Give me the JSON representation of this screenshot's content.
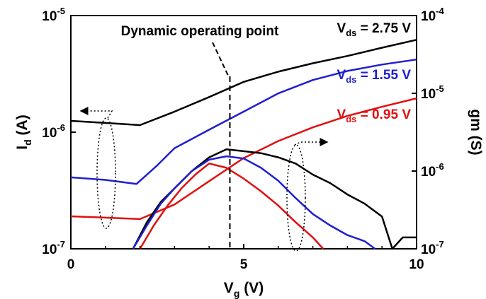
{
  "chart_data": {
    "type": "line",
    "x_axis": {
      "label": "V",
      "label_sub": "g",
      "label_unit": " (V)",
      "range": [
        0,
        10
      ],
      "ticks": [
        "0",
        "5",
        "10"
      ]
    },
    "y_left": {
      "label": "I",
      "label_sub": "d",
      "label_unit": " (A)",
      "scale": "log",
      "range": [
        1e-07,
        1e-05
      ],
      "ticks": [
        {
          "base": "10",
          "exp": "-5"
        },
        {
          "base": "10",
          "exp": "-6"
        },
        {
          "base": "10",
          "exp": "-7"
        }
      ]
    },
    "y_right": {
      "label": "gm (S)",
      "scale": "log",
      "range": [
        1e-07,
        0.0001
      ],
      "ticks": [
        {
          "base": "10",
          "exp": "-4"
        },
        {
          "base": "10",
          "exp": "-5"
        },
        {
          "base": "10",
          "exp": "-6"
        },
        {
          "base": "10",
          "exp": "-7"
        }
      ]
    },
    "series": [
      {
        "name": "V_ds = 2.75 V",
        "color": "#000000",
        "kind": "Id",
        "x": [
          0,
          1,
          2,
          3,
          4,
          5,
          6,
          7,
          8,
          9,
          10
        ],
        "y": [
          1.25e-06,
          1.2e-06,
          1.15e-06,
          1.5e-06,
          2e-06,
          2.7e-06,
          3.3e-06,
          3.9e-06,
          4.5e-06,
          5.3e-06,
          6.2e-06
        ]
      },
      {
        "name": "V_ds = 1.55 V",
        "color": "#1f1fd0",
        "kind": "Id",
        "x": [
          0,
          1,
          1.9,
          2.5,
          3,
          4,
          5,
          6,
          7,
          8,
          9,
          10
        ],
        "y": [
          4.1e-07,
          3.9e-07,
          3.6e-07,
          5.2e-07,
          7.3e-07,
          1.05e-06,
          1.5e-06,
          2.15e-06,
          2.8e-06,
          3.35e-06,
          3.8e-06,
          4.2e-06
        ]
      },
      {
        "name": "V_ds = 0.95 V",
        "color": "#e01010",
        "kind": "Id",
        "x": [
          0,
          1,
          2,
          3,
          4,
          5,
          6,
          7,
          8,
          9,
          10
        ],
        "y": [
          1.9e-07,
          1.85e-07,
          1.8e-07,
          2.4e-07,
          3.8e-07,
          6e-07,
          8.4e-07,
          1.1e-06,
          1.38e-06,
          1.65e-06,
          1.95e-06
        ]
      },
      {
        "name": "gm, V_ds = 2.75 V",
        "color": "#000000",
        "kind": "gm",
        "x": [
          1.8,
          2.2,
          2.6,
          3.0,
          3.5,
          4.0,
          4.5,
          5.0,
          5.5,
          6.0,
          6.5,
          7.0,
          7.5,
          8.0,
          8.5,
          9.0,
          9.3,
          9.6,
          10.0
        ],
        "y": [
          1e-07,
          2.2e-07,
          4e-07,
          6e-07,
          1e-06,
          1.5e-06,
          1.9e-06,
          1.8e-06,
          1.7e-06,
          1.5e-06,
          1.25e-06,
          9e-07,
          7e-07,
          5e-07,
          3.8e-07,
          2.6e-07,
          1e-07,
          1.4e-07,
          1.4e-07
        ]
      },
      {
        "name": "gm, V_ds = 1.55 V",
        "color": "#1f1fd0",
        "kind": "gm",
        "x": [
          1.8,
          2.2,
          2.6,
          3.0,
          3.5,
          4.0,
          4.5,
          5.0,
          5.5,
          6.0,
          6.5,
          7.0,
          7.5,
          8.0,
          8.5,
          8.8
        ],
        "y": [
          1e-07,
          2e-07,
          3.8e-07,
          6e-07,
          1e-06,
          1.4e-06,
          1.55e-06,
          1.45e-06,
          1.1e-06,
          7.5e-07,
          4.5e-07,
          2.8e-07,
          2e-07,
          1.5e-07,
          1.25e-07,
          1e-07
        ]
      },
      {
        "name": "gm, V_ds = 0.95 V",
        "color": "#e01010",
        "kind": "gm",
        "x": [
          2.0,
          2.4,
          2.8,
          3.2,
          3.6,
          4.0,
          4.5,
          5.0,
          5.5,
          6.0,
          6.5,
          7.0,
          7.3
        ],
        "y": [
          1e-07,
          2e-07,
          3.6e-07,
          6e-07,
          9e-07,
          1.25e-06,
          1.1e-06,
          8e-07,
          5.5e-07,
          3.6e-07,
          2.2e-07,
          1.4e-07,
          1e-07
        ]
      }
    ],
    "labels": [
      {
        "prefix": "V",
        "sub": "ds",
        "suffix": " = 2.75 V",
        "color": "#000000"
      },
      {
        "prefix": "V",
        "sub": "ds",
        "suffix": " = 1.55 V",
        "color": "#1f1fd0"
      },
      {
        "prefix": "V",
        "sub": "ds",
        "suffix": " = 0.95 V",
        "color": "#e01010"
      }
    ],
    "annotation": {
      "text": "Dynamic operating point",
      "x": 4.6
    },
    "grid": false
  }
}
